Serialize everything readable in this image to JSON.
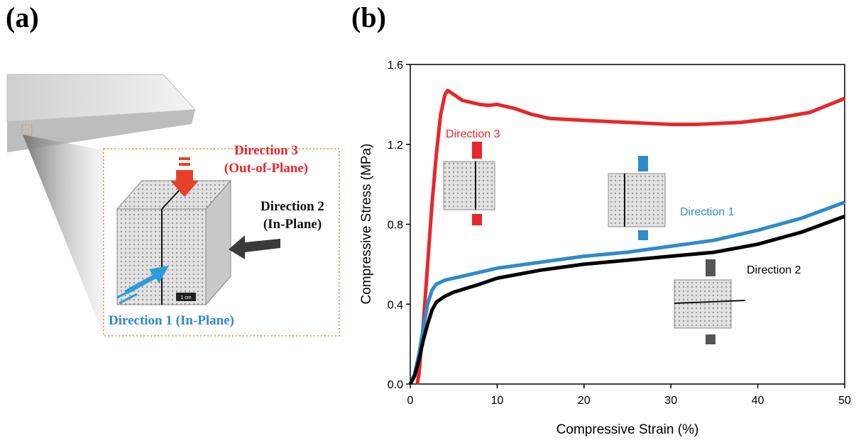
{
  "panel_a": {
    "label": "(a)",
    "direction_3": [
      "Direction 3",
      "(Out-of-Plane)"
    ],
    "direction_2": [
      "Direction 2",
      "(In-Plane)"
    ],
    "direction_1": "Direction 1 (In-Plane)",
    "scale_bar": "1 cm"
  },
  "chart_data": {
    "type": "line",
    "panel_label": "(b)",
    "x_label": "Compressive Strain (%)",
    "y_label": "Compressive Stress (MPa)",
    "xlim": [
      0,
      50
    ],
    "ylim": [
      0,
      1.6
    ],
    "xticks": [
      0,
      10,
      20,
      30,
      40,
      50
    ],
    "yticks": [
      {
        "value": 0,
        "label": "0.0"
      },
      0.4,
      0.8,
      1.2,
      1.6
    ],
    "series": [
      {
        "name": "Direction 3",
        "color": "#e8262b",
        "x": [
          0.8,
          1,
          1.5,
          2,
          2.5,
          3,
          3.5,
          4,
          4.3,
          5,
          6,
          8,
          9,
          10,
          12,
          14,
          16,
          20,
          25,
          30,
          33,
          38,
          42,
          46,
          50
        ],
        "values": [
          0,
          0.05,
          0.3,
          0.6,
          0.9,
          1.15,
          1.35,
          1.45,
          1.47,
          1.45,
          1.42,
          1.4,
          1.395,
          1.4,
          1.38,
          1.35,
          1.33,
          1.32,
          1.31,
          1.3,
          1.3,
          1.31,
          1.33,
          1.36,
          1.43
        ]
      },
      {
        "name": "Direction 1",
        "color": "#2e8bc9",
        "x": [
          0,
          0.5,
          1,
          1.5,
          2,
          2.5,
          3,
          4,
          6,
          8,
          10,
          15,
          20,
          25,
          30,
          35,
          40,
          45,
          50
        ],
        "values": [
          0,
          0.05,
          0.15,
          0.28,
          0.4,
          0.47,
          0.5,
          0.52,
          0.54,
          0.56,
          0.58,
          0.61,
          0.64,
          0.66,
          0.69,
          0.72,
          0.77,
          0.83,
          0.91
        ]
      },
      {
        "name": "Direction 2",
        "color": "#000000",
        "x": [
          0,
          0.5,
          1,
          1.5,
          2,
          2.5,
          3,
          4,
          5,
          8,
          10,
          15,
          20,
          25,
          30,
          35,
          40,
          45,
          50
        ],
        "values": [
          0,
          0.04,
          0.12,
          0.22,
          0.3,
          0.37,
          0.41,
          0.44,
          0.46,
          0.5,
          0.53,
          0.57,
          0.6,
          0.62,
          0.64,
          0.66,
          0.7,
          0.76,
          0.84
        ]
      }
    ]
  }
}
